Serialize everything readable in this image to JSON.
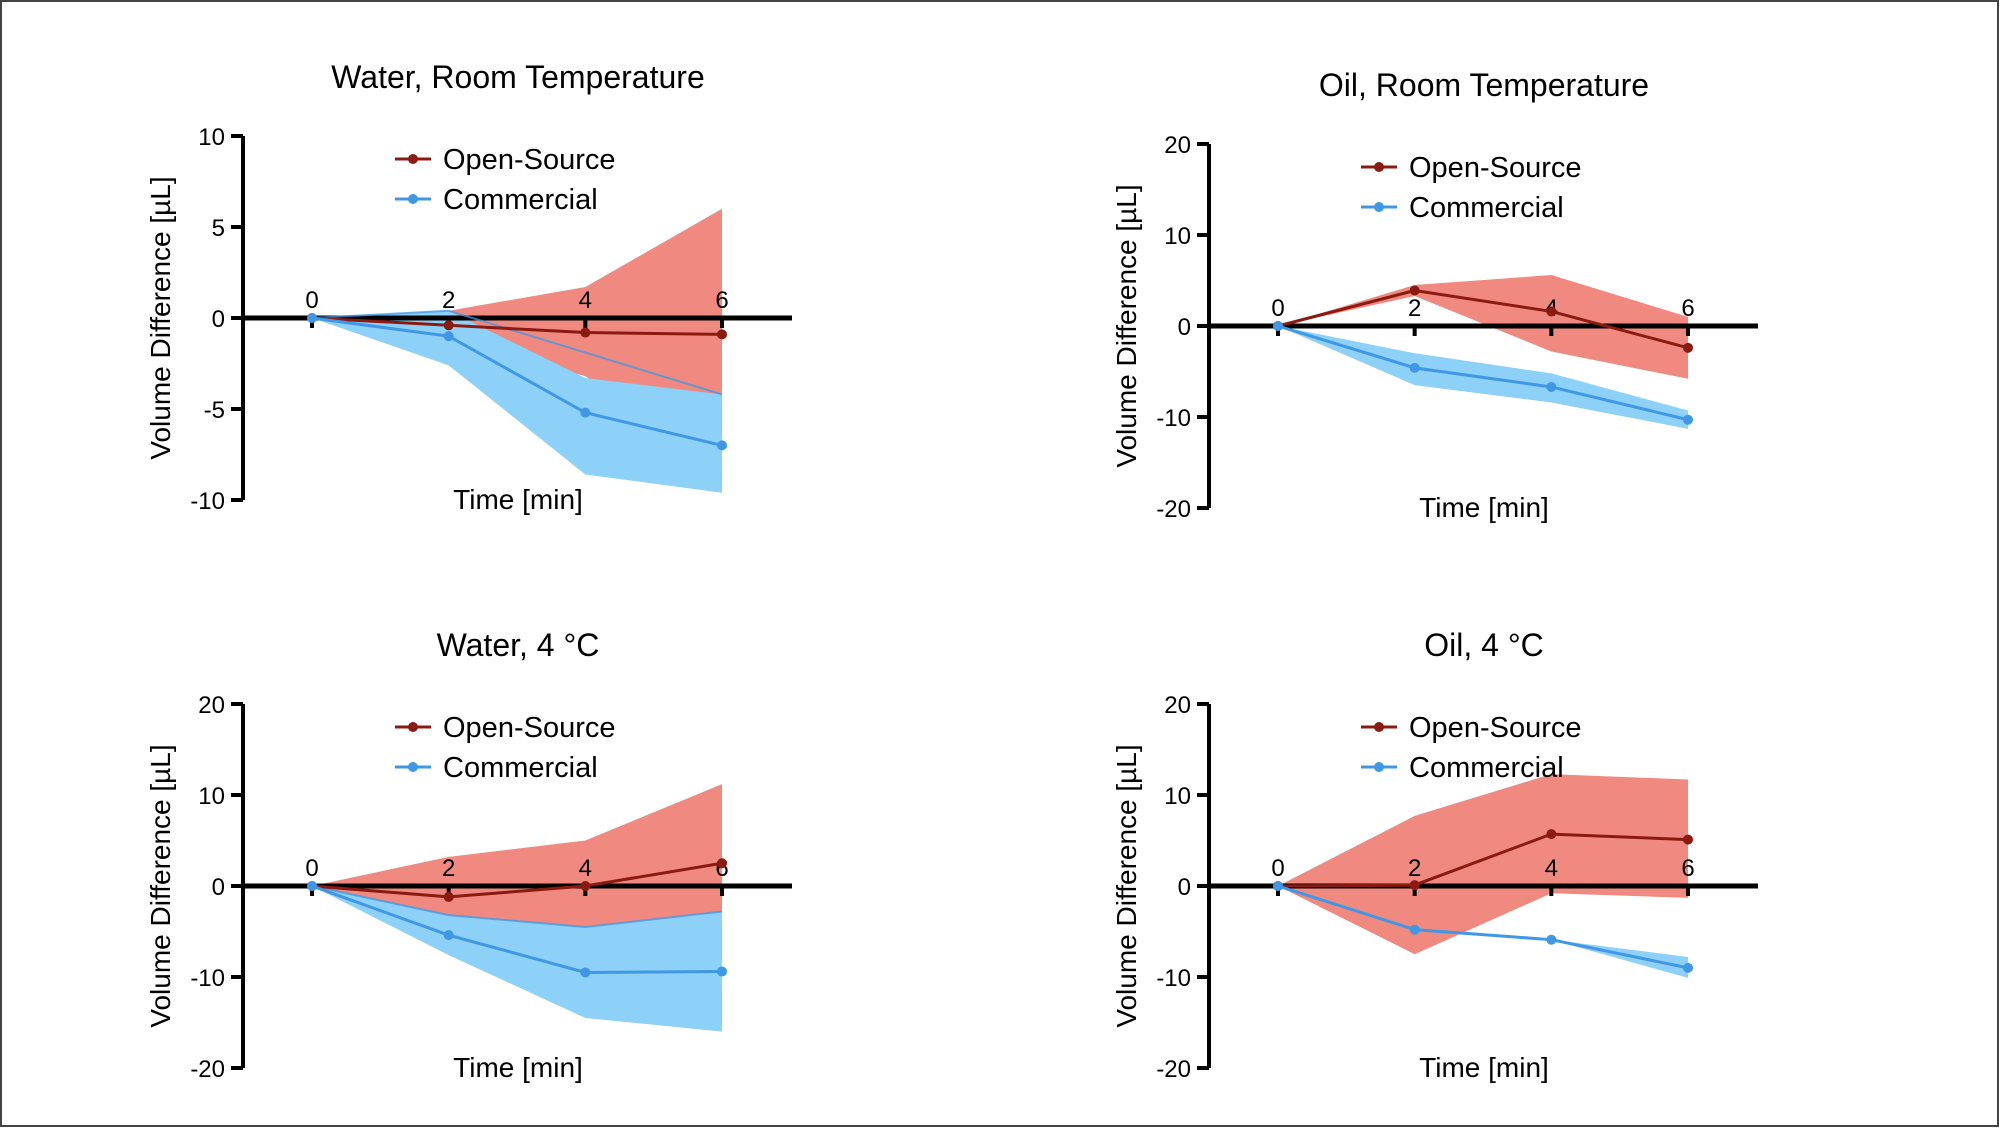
{
  "chart_data": [
    {
      "type": "line",
      "title": "Water, Room Temperature",
      "xlabel": "Time [min]",
      "ylabel": "Volume Difference [µL]",
      "ylim": [
        -10,
        10
      ],
      "yticks": [
        -10,
        -5,
        0,
        5,
        10
      ],
      "xlim": [
        0,
        6
      ],
      "xticks": [
        0,
        2,
        4,
        6
      ],
      "grid": false,
      "legend": "top-center",
      "x": [
        0,
        2,
        4,
        6
      ],
      "series": [
        {
          "name": "Open-Source",
          "color": "#8b1a10",
          "band_color": "#f08a80",
          "values": [
            0,
            -0.4,
            -0.8,
            -0.9
          ],
          "lower": [
            0,
            -1.0,
            -3.2,
            -7.8
          ],
          "upper": [
            0,
            0.4,
            1.7,
            6.0
          ],
          "band_line": null
        },
        {
          "name": "Commercial",
          "color": "#3f97e6",
          "band_color": "#8dd0f8",
          "values": [
            0,
            -1.0,
            -5.2,
            -7.0
          ],
          "lower": [
            0,
            -2.6,
            -8.6,
            -9.6
          ],
          "upper": [
            0,
            0.4,
            -3.3,
            -4.2
          ],
          "band_line": [
            0,
            0.4,
            -1.9,
            -4.2
          ]
        }
      ]
    },
    {
      "type": "line",
      "title": "Oil, Room Temperature",
      "xlabel": "Time [min]",
      "ylabel": "Volume Difference [µL]",
      "ylim": [
        -20,
        20
      ],
      "yticks": [
        -20,
        -10,
        0,
        10,
        20
      ],
      "xlim": [
        0,
        6
      ],
      "xticks": [
        0,
        2,
        4,
        6
      ],
      "grid": false,
      "legend": "top-center",
      "x": [
        0,
        2,
        4,
        6
      ],
      "series": [
        {
          "name": "Open-Source",
          "color": "#8b1a10",
          "band_color": "#f08a80",
          "values": [
            0,
            3.9,
            1.6,
            -2.4
          ],
          "lower": [
            0,
            3.3,
            -2.8,
            -5.8
          ],
          "upper": [
            0,
            4.5,
            5.6,
            1.0
          ],
          "band_line": null
        },
        {
          "name": "Commercial",
          "color": "#3f97e6",
          "band_color": "#8dd0f8",
          "values": [
            0,
            -4.6,
            -6.7,
            -10.3
          ],
          "lower": [
            0,
            -6.5,
            -8.4,
            -11.3
          ],
          "upper": [
            0,
            -3.0,
            -5.2,
            -9.3
          ],
          "band_line": null
        }
      ]
    },
    {
      "type": "line",
      "title": "Water, 4 °C",
      "xlabel": "Time [min]",
      "ylabel": "Volume Difference [µL]",
      "ylim": [
        -20,
        20
      ],
      "yticks": [
        -20,
        -10,
        0,
        10,
        20
      ],
      "xlim": [
        0,
        6
      ],
      "xticks": [
        0,
        2,
        4,
        6
      ],
      "grid": false,
      "legend": "top-center",
      "x": [
        0,
        2,
        4,
        6
      ],
      "series": [
        {
          "name": "Open-Source",
          "color": "#8b1a10",
          "band_color": "#f08a80",
          "values": [
            0,
            -1.2,
            0,
            2.5
          ],
          "lower": [
            0,
            -5.4,
            -5.2,
            -6.0
          ],
          "upper": [
            0,
            3.2,
            5.0,
            11.2
          ],
          "band_line": null
        },
        {
          "name": "Commercial",
          "color": "#3f97e6",
          "band_color": "#8dd0f8",
          "values": [
            0,
            -5.4,
            -9.5,
            -9.4
          ],
          "lower": [
            0,
            -7.6,
            -14.5,
            -16.0
          ],
          "upper": [
            0,
            -3.2,
            -4.5,
            -2.8
          ],
          "band_line": [
            0,
            -3.2,
            -4.5,
            -2.8
          ]
        }
      ]
    },
    {
      "type": "line",
      "title": "Oil, 4 °C",
      "xlabel": "Time [min]",
      "ylabel": "Volume Difference [µL]",
      "ylim": [
        -20,
        20
      ],
      "yticks": [
        -20,
        -10,
        0,
        10,
        20
      ],
      "xlim": [
        0,
        6
      ],
      "xticks": [
        0,
        2,
        4,
        6
      ],
      "grid": false,
      "legend": "top-center",
      "x": [
        0,
        2,
        4,
        6
      ],
      "series": [
        {
          "name": "Open-Source",
          "color": "#8b1a10",
          "band_color": "#f08a80",
          "values": [
            0,
            0.1,
            5.7,
            5.1
          ],
          "lower": [
            0,
            -7.5,
            -0.8,
            -1.3
          ],
          "upper": [
            0,
            7.7,
            12.3,
            11.7
          ],
          "band_line": null
        },
        {
          "name": "Commercial",
          "color": "#3f97e6",
          "band_color": "#8dd0f8",
          "values": [
            0,
            -4.8,
            -5.9,
            -9.0
          ],
          "lower": [
            0,
            -4.8,
            -5.9,
            -10.1
          ],
          "upper": [
            0,
            -4.8,
            -5.9,
            -7.8
          ],
          "band_line": null
        }
      ]
    }
  ]
}
